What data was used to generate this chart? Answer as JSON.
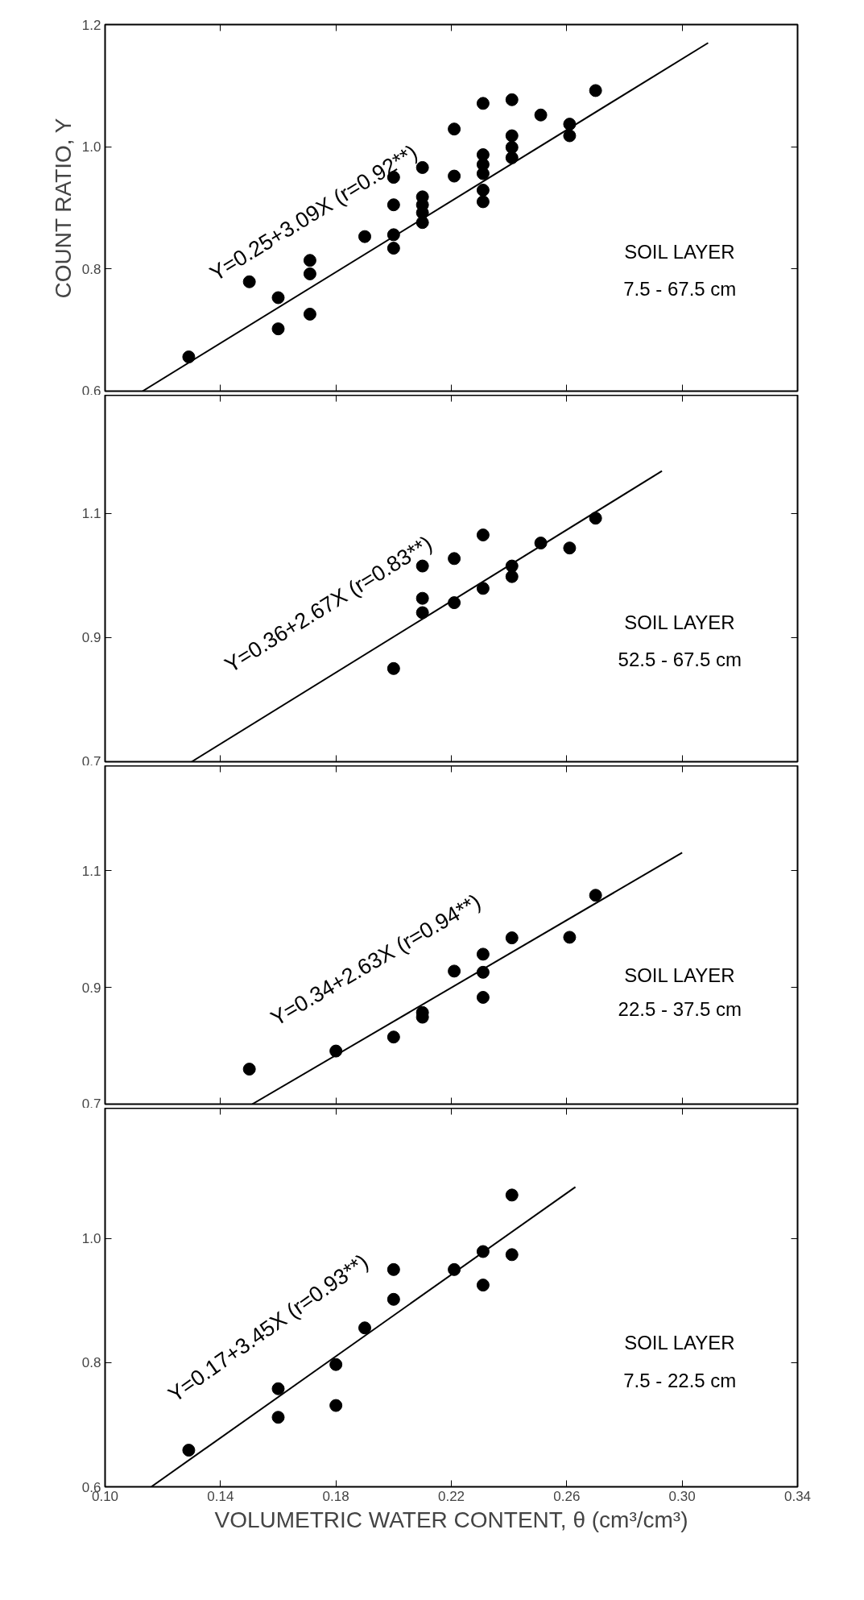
{
  "chart_data": [
    {
      "type": "scatter",
      "ylabel": "COUNT RATIO, Y",
      "annotations": [
        "Y=0.25+3.09X (r=0.92**)",
        "SOIL LAYER",
        "7.5 - 67.5 cm"
      ],
      "grid": false,
      "tick_labels": "y",
      "xlim": [
        0.1,
        0.34
      ],
      "xticks": [
        0.14,
        0.18,
        0.22,
        0.26,
        0.3
      ],
      "ylim": [
        0.6,
        1.2
      ],
      "yticks": [
        0.6,
        0.8,
        {
          "value": 1.0,
          "label": "1.0"
        },
        1.2
      ],
      "series": [
        {
          "type": "scatter",
          "marker": "circle",
          "color": "#000000",
          "x": [
            0.129,
            0.15,
            0.16,
            0.16,
            0.171,
            0.171,
            0.171,
            0.19,
            0.2,
            0.2,
            0.2,
            0.2,
            0.21,
            0.21,
            0.21,
            0.21,
            0.21,
            0.221,
            0.221,
            0.231,
            0.231,
            0.231,
            0.231,
            0.231,
            0.231,
            0.241,
            0.241,
            0.241,
            0.241,
            0.251,
            0.261,
            0.261,
            0.27
          ],
          "values": [
            0.656,
            0.779,
            0.753,
            0.702,
            0.814,
            0.792,
            0.726,
            0.853,
            0.95,
            0.905,
            0.856,
            0.834,
            0.966,
            0.918,
            0.905,
            0.892,
            0.876,
            1.029,
            0.952,
            1.071,
            0.987,
            0.971,
            0.956,
            0.929,
            0.91,
            1.077,
            1.018,
            0.999,
            0.982,
            1.052,
            1.037,
            1.018,
            1.092
          ]
        },
        {
          "type": "line",
          "color": "#000000",
          "x": [
            0.113,
            0.309
          ],
          "values": [
            0.6,
            1.17
          ]
        }
      ]
    },
    {
      "type": "scatter",
      "annotations": [
        "Y=0.36+2.67X (r=0.83**)",
        "SOIL LAYER",
        "52.5 - 67.5 cm"
      ],
      "grid": false,
      "tick_labels": "y",
      "xlim": [
        0.1,
        0.34
      ],
      "xticks": [
        0.14,
        0.18,
        0.22,
        0.26,
        0.3
      ],
      "ylim": [
        0.7,
        1.29
      ],
      "yticks": [
        0.7,
        0.9,
        1.1
      ],
      "series": [
        {
          "type": "scatter",
          "marker": "circle",
          "color": "#000000",
          "x": [
            0.2,
            0.21,
            0.21,
            0.21,
            0.221,
            0.221,
            0.231,
            0.231,
            0.241,
            0.241,
            0.251,
            0.261,
            0.27
          ],
          "values": [
            0.85,
            1.015,
            0.963,
            0.94,
            1.027,
            0.956,
            1.065,
            0.979,
            1.015,
            0.998,
            1.052,
            1.044,
            1.092
          ]
        },
        {
          "type": "line",
          "color": "#000000",
          "x": [
            0.13,
            0.293
          ],
          "values": [
            0.7,
            1.168
          ]
        }
      ]
    },
    {
      "type": "scatter",
      "annotations": [
        "Y=0.34+2.63X (r=0.94**)",
        "SOIL LAYER",
        "22.5 - 37.5 cm"
      ],
      "grid": false,
      "tick_labels": "y",
      "xlim": [
        0.1,
        0.34
      ],
      "xticks": [
        0.14,
        0.18,
        0.22,
        0.26,
        0.3
      ],
      "ylim": [
        0.7,
        1.28
      ],
      "yticks": [
        0.7,
        0.9,
        1.1
      ],
      "series": [
        {
          "type": "scatter",
          "marker": "circle",
          "color": "#000000",
          "x": [
            0.15,
            0.18,
            0.2,
            0.21,
            0.21,
            0.221,
            0.231,
            0.231,
            0.231,
            0.241,
            0.261,
            0.27
          ],
          "values": [
            0.76,
            0.791,
            0.815,
            0.849,
            0.857,
            0.928,
            0.957,
            0.926,
            0.883,
            0.985,
            0.986,
            1.058
          ]
        },
        {
          "type": "line",
          "color": "#000000",
          "x": [
            0.151,
            0.3
          ],
          "values": [
            0.7,
            1.131
          ]
        }
      ]
    },
    {
      "type": "scatter",
      "xlabel": "VOLUMETRIC WATER CONTENT, θ (cm³/cm³)",
      "annotations": [
        "Y=0.17+3.45X (r=0.93**)",
        "SOIL LAYER",
        "7.5 - 22.5 cm"
      ],
      "grid": false,
      "xlim": [
        0.1,
        0.34
      ],
      "xticks": [
        {
          "value": 0.1,
          "label": "0.10"
        },
        0.14,
        0.18,
        0.22,
        0.26,
        {
          "value": 0.3,
          "label": "0.30"
        },
        0.34
      ],
      "ylim": [
        0.6,
        1.21
      ],
      "yticks": [
        0.6,
        0.8,
        {
          "value": 1.0,
          "label": "1.0"
        }
      ],
      "series": [
        {
          "type": "scatter",
          "marker": "circle",
          "color": "#000000",
          "x": [
            0.129,
            0.16,
            0.16,
            0.18,
            0.18,
            0.19,
            0.2,
            0.2,
            0.221,
            0.231,
            0.231,
            0.241,
            0.241
          ],
          "values": [
            0.659,
            0.712,
            0.758,
            0.797,
            0.731,
            0.856,
            0.95,
            0.902,
            0.95,
            0.979,
            0.925,
            1.07,
            0.974
          ]
        },
        {
          "type": "line",
          "color": "#000000",
          "x": [
            0.116,
            0.263
          ],
          "values": [
            0.6,
            1.083
          ]
        }
      ]
    }
  ]
}
